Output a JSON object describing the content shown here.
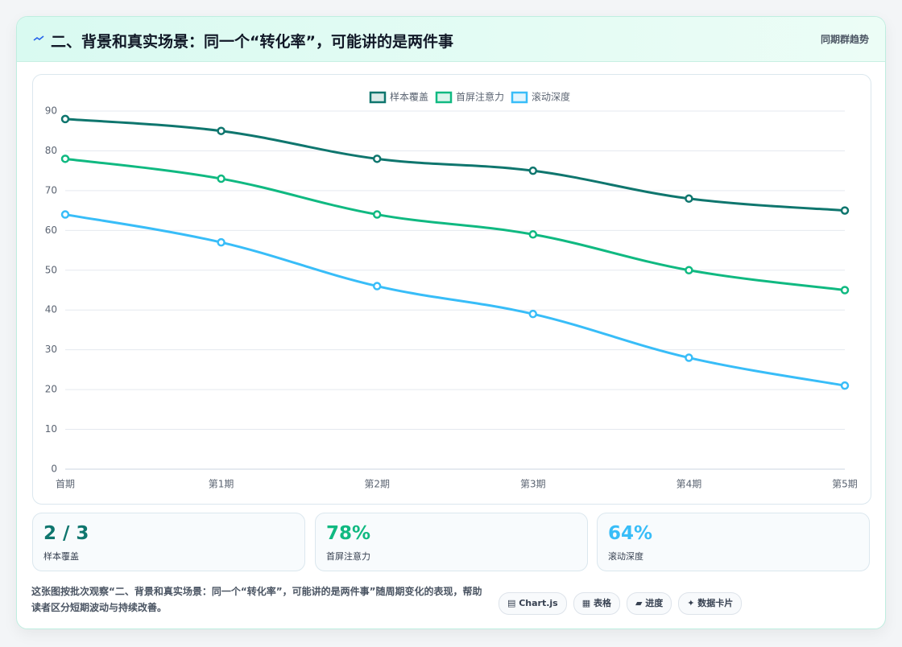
{
  "header": {
    "title": "二、背景和真实场景：同一个“转化率”，可能讲的是两件事",
    "tag": "同期群趋势"
  },
  "chart_data": {
    "type": "line",
    "categories": [
      "首期",
      "第1期",
      "第2期",
      "第3期",
      "第4期",
      "第5期"
    ],
    "series": [
      {
        "name": "样本覆盖",
        "color": "#0f766e",
        "values": [
          88,
          85,
          78,
          75,
          68,
          65
        ]
      },
      {
        "name": "首屏注意力",
        "color": "#10b981",
        "values": [
          78,
          73,
          64,
          59,
          50,
          45
        ]
      },
      {
        "name": "滚动深度",
        "color": "#38bdf8",
        "values": [
          64,
          57,
          46,
          39,
          28,
          21
        ]
      }
    ],
    "ylim": [
      0,
      90
    ],
    "yticks": [
      0,
      10,
      20,
      30,
      40,
      50,
      60,
      70,
      80,
      90
    ],
    "grid": true,
    "legend": "top"
  },
  "stats": [
    {
      "value": "2 / 3",
      "label": "样本覆盖"
    },
    {
      "value": "78%",
      "label": "首屏注意力"
    },
    {
      "value": "64%",
      "label": "滚动深度"
    }
  ],
  "footer": {
    "note": "这张图按批次观察“二、背景和真实场景：同一个“转化率”，可能讲的是两件事”随周期变化的表现，帮助读者区分短期波动与持续改善。",
    "buttons": [
      "▤ Chart.js",
      "▦ 表格",
      "▰ 进度",
      "✦ 数据卡片"
    ]
  }
}
